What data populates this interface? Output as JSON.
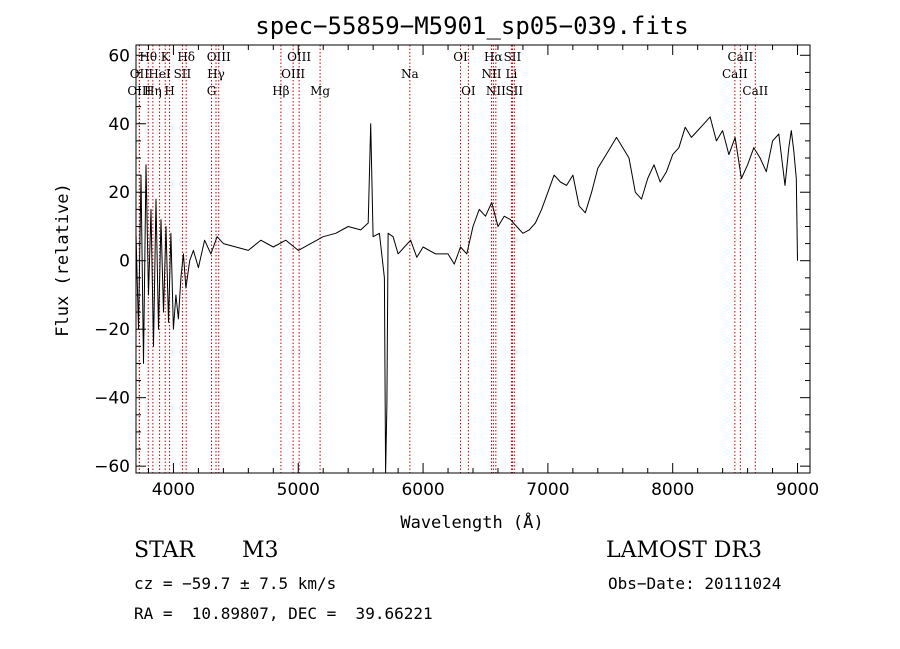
{
  "chart_data": {
    "type": "line",
    "title": "spec−55859−M5901_sp05−039.fits",
    "xlabel": "Wavelength (Å)",
    "ylabel": "Flux (relative)",
    "xlim": [
      3700,
      9100
    ],
    "ylim": [
      -62,
      63
    ],
    "x_ticks": [
      4000,
      5000,
      6000,
      7000,
      8000,
      9000
    ],
    "y_ticks": [
      60,
      40,
      20,
      0,
      -20,
      -40,
      -60
    ],
    "y_tick_labels": [
      "60",
      "40",
      "20",
      "0",
      "−20",
      "−40",
      "−60"
    ],
    "series": [
      {
        "name": "spectrum",
        "x": [
          3700,
          3720,
          3740,
          3760,
          3780,
          3800,
          3820,
          3840,
          3860,
          3880,
          3900,
          3920,
          3940,
          3960,
          3980,
          4000,
          4020,
          4040,
          4060,
          4080,
          4100,
          4130,
          4160,
          4200,
          4250,
          4300,
          4350,
          4400,
          4500,
          4600,
          4700,
          4800,
          4900,
          5000,
          5100,
          5200,
          5300,
          5400,
          5500,
          5560,
          5580,
          5600,
          5650,
          5690,
          5700,
          5710,
          5720,
          5760,
          5800,
          5850,
          5900,
          5950,
          6000,
          6100,
          6200,
          6250,
          6300,
          6350,
          6400,
          6450,
          6500,
          6550,
          6600,
          6650,
          6700,
          6750,
          6800,
          6850,
          6900,
          6950,
          7000,
          7050,
          7100,
          7150,
          7200,
          7250,
          7300,
          7350,
          7400,
          7450,
          7500,
          7550,
          7600,
          7650,
          7700,
          7750,
          7800,
          7850,
          7900,
          7950,
          8000,
          8050,
          8100,
          8150,
          8200,
          8250,
          8300,
          8350,
          8400,
          8450,
          8500,
          8550,
          8600,
          8650,
          8700,
          8750,
          8800,
          8850,
          8900,
          8930,
          8950,
          8970,
          8990,
          9000
        ],
        "y": [
          8,
          -20,
          25,
          -30,
          28,
          -10,
          15,
          -25,
          18,
          -20,
          12,
          -15,
          10,
          -18,
          8,
          -20,
          -10,
          -17,
          -5,
          2,
          -8,
          0,
          3,
          -2,
          6,
          2,
          7,
          5,
          4,
          3,
          6,
          4,
          6,
          3,
          5,
          7,
          8,
          10,
          9,
          11,
          40,
          7,
          8,
          -5,
          -62,
          -42,
          8,
          7,
          2,
          4,
          6,
          1,
          4,
          2,
          2,
          -1,
          4,
          2,
          10,
          15,
          13,
          17,
          10,
          13,
          12,
          10,
          8,
          9,
          11,
          15,
          20,
          25,
          23,
          22,
          25,
          16,
          14,
          20,
          27,
          30,
          33,
          36,
          33,
          30,
          20,
          18,
          24,
          28,
          23,
          26,
          31,
          33,
          39,
          36,
          38,
          40,
          42,
          35,
          38,
          31,
          36,
          24,
          28,
          33,
          30,
          26,
          35,
          37,
          22,
          33,
          38,
          32,
          24,
          0
        ]
      }
    ],
    "line_markers": [
      {
        "name": "Hθ",
        "wl": 3798,
        "row": 0
      },
      {
        "name": "OII",
        "wl": 3727,
        "row": 1
      },
      {
        "name": "OIII",
        "wl": 3727,
        "row": 2
      },
      {
        "name": "K",
        "wl": 3934,
        "row": 0
      },
      {
        "name": "HeI",
        "wl": 3889,
        "row": 1
      },
      {
        "name": "Hη",
        "wl": 3835,
        "row": 2
      },
      {
        "name": "SII",
        "wl": 4072,
        "row": 1
      },
      {
        "name": "H",
        "wl": 3969,
        "row": 2
      },
      {
        "name": "Hδ",
        "wl": 4102,
        "row": 0
      },
      {
        "name": "OIII",
        "wl": 4363,
        "row": 0
      },
      {
        "name": "Hγ",
        "wl": 4341,
        "row": 1
      },
      {
        "name": "G",
        "wl": 4305,
        "row": 2
      },
      {
        "name": "Hβ",
        "wl": 4861,
        "row": 2
      },
      {
        "name": "OIII",
        "wl": 5007,
        "row": 0
      },
      {
        "name": "OIII",
        "wl": 4959,
        "row": 1
      },
      {
        "name": "Mg",
        "wl": 5175,
        "row": 2
      },
      {
        "name": "Na",
        "wl": 5894,
        "row": 1
      },
      {
        "name": "OI",
        "wl": 6300,
        "row": 0
      },
      {
        "name": "OI",
        "wl": 6363,
        "row": 2
      },
      {
        "name": "Hα",
        "wl": 6563,
        "row": 0
      },
      {
        "name": "NII",
        "wl": 6548,
        "row": 1
      },
      {
        "name": "NII",
        "wl": 6583,
        "row": 2
      },
      {
        "name": "SII",
        "wl": 6716,
        "row": 0
      },
      {
        "name": "Li",
        "wl": 6708,
        "row": 1
      },
      {
        "name": "SII",
        "wl": 6731,
        "row": 2
      },
      {
        "name": "CaII",
        "wl": 8542,
        "row": 0
      },
      {
        "name": "CaII",
        "wl": 8498,
        "row": 1
      },
      {
        "name": "CaII",
        "wl": 8662,
        "row": 2
      }
    ],
    "colors": {
      "spectrum": "#000000",
      "marker": "#cc0000"
    }
  },
  "info": {
    "class": "STAR",
    "subclass": "M3",
    "survey": "LAMOST DR3",
    "cz": "cz = −59.7 ± 7.5 km/s",
    "obs_date": "Obs−Date: 20111024",
    "radec": "RA =  10.89807, DEC =  39.66221"
  }
}
